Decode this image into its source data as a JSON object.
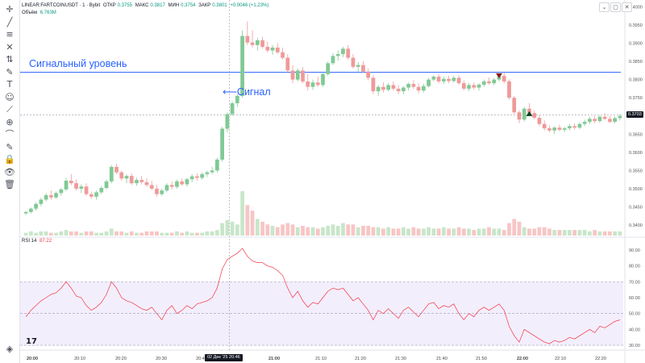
{
  "header": {
    "symbol": "LINEAR:FARTCOINUSDT · 1 · Bybit",
    "ohlc": [
      {
        "label": "ОТКР",
        "value": "0.3755"
      },
      {
        "label": "МАКС",
        "value": "0.3817"
      },
      {
        "label": "МИН",
        "value": "0.3754"
      },
      {
        "label": "ЗАКР",
        "value": "0.3801"
      }
    ],
    "change": "+0.0046 (+1.23%)",
    "volume_label": "Объём",
    "volume_value": "6.763M",
    "rsi_label": "RSI 14",
    "rsi_value": "87.22"
  },
  "annotations": {
    "level_label": "Сигнальный уровень",
    "signal_label": "Сигнал"
  },
  "price_axis": {
    "labels": [
      "0.4000",
      "0.3950",
      "0.3900",
      "0.3850",
      "0.3800",
      "0.3750",
      "0.3700",
      "0.3650",
      "0.3600",
      "0.3550",
      "0.3500",
      "0.3450",
      "0.3400"
    ],
    "current_price": "0.3703"
  },
  "rsi_axis": {
    "labels": [
      "90.00",
      "80.00",
      "70.00",
      "60.00",
      "50.00",
      "40.00",
      "30.00"
    ]
  },
  "time_axis": {
    "labels": [
      "20:00",
      "20:10",
      "20:20",
      "20:30",
      "20:40",
      "21:00",
      "21:10",
      "21:20",
      "21:30",
      "21:40",
      "21:50",
      "22:00",
      "22:10",
      "22:20"
    ],
    "crosshair_label": "02 Дек '25   20:46"
  },
  "toolbar": {
    "icons": [
      "cursor-icon",
      "trend-line-icon",
      "fib-icon",
      "pattern-icon",
      "measure-icon",
      "brush-icon",
      "text-icon",
      "emoji-icon",
      "ruler-icon",
      "zoom-icon",
      "magnet-icon",
      "lock-drawing-icon",
      "lock-icon",
      "eye-icon",
      "trash-icon"
    ]
  },
  "colors": {
    "up": "#81c995",
    "down": "#ef9a9a",
    "level_line": "#2962ff",
    "rsi_line": "#f23645",
    "rsi_band": "#f3eefc"
  },
  "chart_data": {
    "type": "candlestick",
    "candles_ohlc": [
      [
        0.3432,
        0.3438,
        0.3428,
        0.3436
      ],
      [
        0.3436,
        0.3448,
        0.3432,
        0.3445
      ],
      [
        0.3445,
        0.3462,
        0.344,
        0.3458
      ],
      [
        0.3458,
        0.3475,
        0.3452,
        0.347
      ],
      [
        0.347,
        0.3488,
        0.3465,
        0.3482
      ],
      [
        0.3482,
        0.3495,
        0.347,
        0.3476
      ],
      [
        0.3476,
        0.3492,
        0.3472,
        0.3488
      ],
      [
        0.3488,
        0.3502,
        0.348,
        0.3498
      ],
      [
        0.3498,
        0.353,
        0.3494,
        0.3522
      ],
      [
        0.3522,
        0.354,
        0.351,
        0.3515
      ],
      [
        0.3515,
        0.3525,
        0.3495,
        0.35
      ],
      [
        0.35,
        0.3512,
        0.3488,
        0.3506
      ],
      [
        0.3506,
        0.3515,
        0.348,
        0.3485
      ],
      [
        0.3485,
        0.3492,
        0.3472,
        0.3478
      ],
      [
        0.3478,
        0.3495,
        0.347,
        0.349
      ],
      [
        0.349,
        0.3508,
        0.3485,
        0.3502
      ],
      [
        0.3502,
        0.3525,
        0.3498,
        0.352
      ],
      [
        0.352,
        0.3565,
        0.3515,
        0.356
      ],
      [
        0.356,
        0.3568,
        0.354,
        0.3545
      ],
      [
        0.3545,
        0.355,
        0.3522,
        0.3528
      ],
      [
        0.3528,
        0.354,
        0.3515,
        0.3535
      ],
      [
        0.3535,
        0.3542,
        0.351,
        0.3515
      ],
      [
        0.3515,
        0.353,
        0.3508,
        0.3524
      ],
      [
        0.3524,
        0.3535,
        0.3512,
        0.3518
      ],
      [
        0.3518,
        0.3528,
        0.3505,
        0.351
      ],
      [
        0.351,
        0.3522,
        0.3496,
        0.35
      ],
      [
        0.35,
        0.351,
        0.3478,
        0.3485
      ],
      [
        0.3485,
        0.35,
        0.348,
        0.3495
      ],
      [
        0.3495,
        0.3515,
        0.349,
        0.351
      ],
      [
        0.351,
        0.352,
        0.3498,
        0.3505
      ],
      [
        0.3505,
        0.3525,
        0.35,
        0.352
      ],
      [
        0.352,
        0.3528,
        0.3508,
        0.3512
      ],
      [
        0.3512,
        0.353,
        0.3506,
        0.3526
      ],
      [
        0.3526,
        0.354,
        0.3518,
        0.3534
      ],
      [
        0.3534,
        0.3542,
        0.3522,
        0.353
      ],
      [
        0.353,
        0.3545,
        0.3525,
        0.354
      ],
      [
        0.354,
        0.355,
        0.3532,
        0.3545
      ],
      [
        0.3545,
        0.356,
        0.354,
        0.355
      ],
      [
        0.355,
        0.3585,
        0.3545,
        0.358
      ],
      [
        0.358,
        0.367,
        0.3575,
        0.3665
      ],
      [
        0.3665,
        0.371,
        0.3655,
        0.3705
      ],
      [
        0.3705,
        0.374,
        0.37,
        0.3735
      ],
      [
        0.3735,
        0.376,
        0.3725,
        0.3755
      ],
      [
        0.3755,
        0.3935,
        0.375,
        0.392
      ],
      [
        0.392,
        0.396,
        0.3895,
        0.3902
      ],
      [
        0.3902,
        0.3935,
        0.3888,
        0.3895
      ],
      [
        0.3895,
        0.3915,
        0.388,
        0.3908
      ],
      [
        0.3908,
        0.3918,
        0.3885,
        0.389
      ],
      [
        0.389,
        0.3905,
        0.3875,
        0.388
      ],
      [
        0.388,
        0.3895,
        0.3868,
        0.3888
      ],
      [
        0.3888,
        0.39,
        0.387,
        0.3875
      ],
      [
        0.3875,
        0.3888,
        0.3855,
        0.386
      ],
      [
        0.386,
        0.387,
        0.382,
        0.3825
      ],
      [
        0.3825,
        0.384,
        0.379,
        0.38
      ],
      [
        0.38,
        0.383,
        0.3795,
        0.3825
      ],
      [
        0.3825,
        0.3835,
        0.379,
        0.3795
      ],
      [
        0.3795,
        0.3815,
        0.377,
        0.378
      ],
      [
        0.378,
        0.38,
        0.3772,
        0.3792
      ],
      [
        0.3792,
        0.3808,
        0.378,
        0.3785
      ],
      [
        0.3785,
        0.382,
        0.378,
        0.3815
      ],
      [
        0.3815,
        0.385,
        0.381,
        0.3845
      ],
      [
        0.3845,
        0.3872,
        0.384,
        0.3865
      ],
      [
        0.3865,
        0.388,
        0.3852,
        0.387
      ],
      [
        0.387,
        0.389,
        0.3862,
        0.3885
      ],
      [
        0.3885,
        0.3895,
        0.3855,
        0.386
      ],
      [
        0.386,
        0.387,
        0.383,
        0.3835
      ],
      [
        0.3835,
        0.3848,
        0.382,
        0.384
      ],
      [
        0.384,
        0.385,
        0.3818,
        0.3822
      ],
      [
        0.3822,
        0.383,
        0.3798,
        0.3805
      ],
      [
        0.3805,
        0.3812,
        0.376,
        0.3768
      ],
      [
        0.3768,
        0.3785,
        0.3755,
        0.378
      ],
      [
        0.378,
        0.3792,
        0.3765,
        0.3772
      ],
      [
        0.3772,
        0.379,
        0.3768,
        0.3785
      ],
      [
        0.3785,
        0.3795,
        0.377,
        0.3775
      ],
      [
        0.3775,
        0.3785,
        0.376,
        0.3768
      ],
      [
        0.3768,
        0.3782,
        0.376,
        0.3778
      ],
      [
        0.3778,
        0.3792,
        0.377,
        0.3788
      ],
      [
        0.3788,
        0.3798,
        0.3775,
        0.378
      ],
      [
        0.378,
        0.379,
        0.3762,
        0.377
      ],
      [
        0.377,
        0.3788,
        0.3765,
        0.3782
      ],
      [
        0.3782,
        0.3805,
        0.3778,
        0.38
      ],
      [
        0.38,
        0.3812,
        0.3795,
        0.3808
      ],
      [
        0.3808,
        0.3815,
        0.379,
        0.3795
      ],
      [
        0.3795,
        0.3808,
        0.3788,
        0.3802
      ],
      [
        0.3802,
        0.381,
        0.379,
        0.3796
      ],
      [
        0.3796,
        0.381,
        0.3792,
        0.3805
      ],
      [
        0.3805,
        0.3812,
        0.3785,
        0.379
      ],
      [
        0.379,
        0.3798,
        0.377,
        0.3775
      ],
      [
        0.3775,
        0.379,
        0.3768,
        0.3785
      ],
      [
        0.3785,
        0.3792,
        0.3772,
        0.3778
      ],
      [
        0.3778,
        0.379,
        0.377,
        0.3786
      ],
      [
        0.3786,
        0.38,
        0.378,
        0.3795
      ],
      [
        0.3795,
        0.3806,
        0.3786,
        0.379
      ],
      [
        0.379,
        0.3805,
        0.3784,
        0.38
      ],
      [
        0.38,
        0.3815,
        0.3795,
        0.381
      ],
      [
        0.381,
        0.3818,
        0.379,
        0.3795
      ],
      [
        0.3795,
        0.38,
        0.3745,
        0.375
      ],
      [
        0.375,
        0.3755,
        0.3705,
        0.371
      ],
      [
        0.371,
        0.3715,
        0.368,
        0.369
      ],
      [
        0.369,
        0.3725,
        0.3685,
        0.372
      ],
      [
        0.372,
        0.3735,
        0.3702,
        0.3708
      ],
      [
        0.3708,
        0.3715,
        0.369,
        0.3695
      ],
      [
        0.3695,
        0.3702,
        0.3672,
        0.3678
      ],
      [
        0.3678,
        0.3688,
        0.366,
        0.3666
      ],
      [
        0.3666,
        0.3674,
        0.3655,
        0.366
      ],
      [
        0.366,
        0.3672,
        0.365,
        0.3668
      ],
      [
        0.3668,
        0.3676,
        0.3658,
        0.3662
      ],
      [
        0.3662,
        0.367,
        0.3655,
        0.3666
      ],
      [
        0.3666,
        0.3678,
        0.366,
        0.3672
      ],
      [
        0.3672,
        0.368,
        0.3662,
        0.3668
      ],
      [
        0.3668,
        0.3682,
        0.3664,
        0.3678
      ],
      [
        0.3678,
        0.369,
        0.3672,
        0.3684
      ],
      [
        0.3684,
        0.3698,
        0.3678,
        0.3692
      ],
      [
        0.3692,
        0.37,
        0.368,
        0.3686
      ],
      [
        0.3686,
        0.3702,
        0.3682,
        0.3698
      ],
      [
        0.3698,
        0.3708,
        0.3688,
        0.3692
      ],
      [
        0.3692,
        0.37,
        0.368,
        0.3684
      ],
      [
        0.3684,
        0.3698,
        0.368,
        0.3694
      ],
      [
        0.3694,
        0.3705,
        0.3688,
        0.37
      ]
    ],
    "volume": [
      2,
      3,
      2,
      3,
      3,
      2,
      2,
      3,
      4,
      3,
      3,
      2,
      3,
      3,
      2,
      2,
      3,
      5,
      3,
      3,
      2,
      3,
      2,
      2,
      3,
      3,
      3,
      2,
      2,
      2,
      3,
      2,
      3,
      2,
      2,
      2,
      3,
      3,
      4,
      9,
      11,
      10,
      8,
      32,
      22,
      18,
      12,
      10,
      8,
      7,
      6,
      8,
      9,
      8,
      6,
      7,
      6,
      6,
      5,
      6,
      7,
      8,
      7,
      9,
      8,
      8,
      6,
      7,
      7,
      6,
      6,
      5,
      6,
      5,
      5,
      6,
      5,
      6,
      5,
      5,
      6,
      5,
      5,
      6,
      5,
      5,
      6,
      5,
      5,
      4,
      5,
      5,
      6,
      5,
      5,
      4,
      9,
      12,
      10,
      6,
      5,
      5,
      6,
      6,
      5,
      4,
      4,
      4,
      4,
      4,
      4,
      4,
      3,
      4,
      3,
      3,
      3,
      3,
      3
    ],
    "rsi": [
      48,
      52,
      55,
      58,
      60,
      62,
      63,
      66,
      70,
      66,
      61,
      60,
      55,
      52,
      54,
      57,
      62,
      70,
      66,
      60,
      58,
      57,
      55,
      53,
      52,
      54,
      50,
      46,
      52,
      55,
      50,
      52,
      55,
      53,
      56,
      57,
      58,
      60,
      66,
      78,
      84,
      86,
      88,
      91,
      86,
      83,
      82,
      82,
      80,
      79,
      77,
      74,
      66,
      60,
      64,
      58,
      54,
      57,
      56,
      60,
      64,
      66,
      65,
      66,
      62,
      58,
      60,
      56,
      52,
      46,
      52,
      50,
      53,
      50,
      47,
      52,
      54,
      51,
      48,
      52,
      56,
      57,
      53,
      55,
      54,
      56,
      50,
      46,
      50,
      48,
      52,
      54,
      52,
      54,
      56,
      52,
      42,
      36,
      32,
      40,
      38,
      36,
      34,
      32,
      31,
      33,
      32,
      33,
      35,
      34,
      36,
      38,
      40,
      38,
      42,
      41,
      43,
      45,
      46
    ],
    "ylim": [
      0.338,
      0.401
    ],
    "rsi_ylim": [
      28,
      95
    ],
    "level": 0.382,
    "markers": [
      {
        "index": 94,
        "type": "down"
      },
      {
        "index": 100,
        "type": "up"
      }
    ],
    "signal_candle_index": 43
  }
}
